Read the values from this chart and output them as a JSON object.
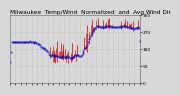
{
  "title": "Milwaukee  Temp/Wind  Normalized  and  Avg Wind Dir",
  "bg_color": "#d8d8d8",
  "plot_bg_color": "#d8d8d8",
  "grid_color": "#aaaaaa",
  "ylim": [
    0,
    360
  ],
  "ytick_values": [
    0,
    90,
    180,
    270,
    360
  ],
  "ytick_labels": [
    "0",
    ".",
    ".",
    ".",
    "360"
  ],
  "avg_wind_color": "#0000cc",
  "gust_color": "#cc0000",
  "title_fontsize": 4.2,
  "tick_fontsize": 3.2,
  "n_points": 144,
  "seed": 7
}
